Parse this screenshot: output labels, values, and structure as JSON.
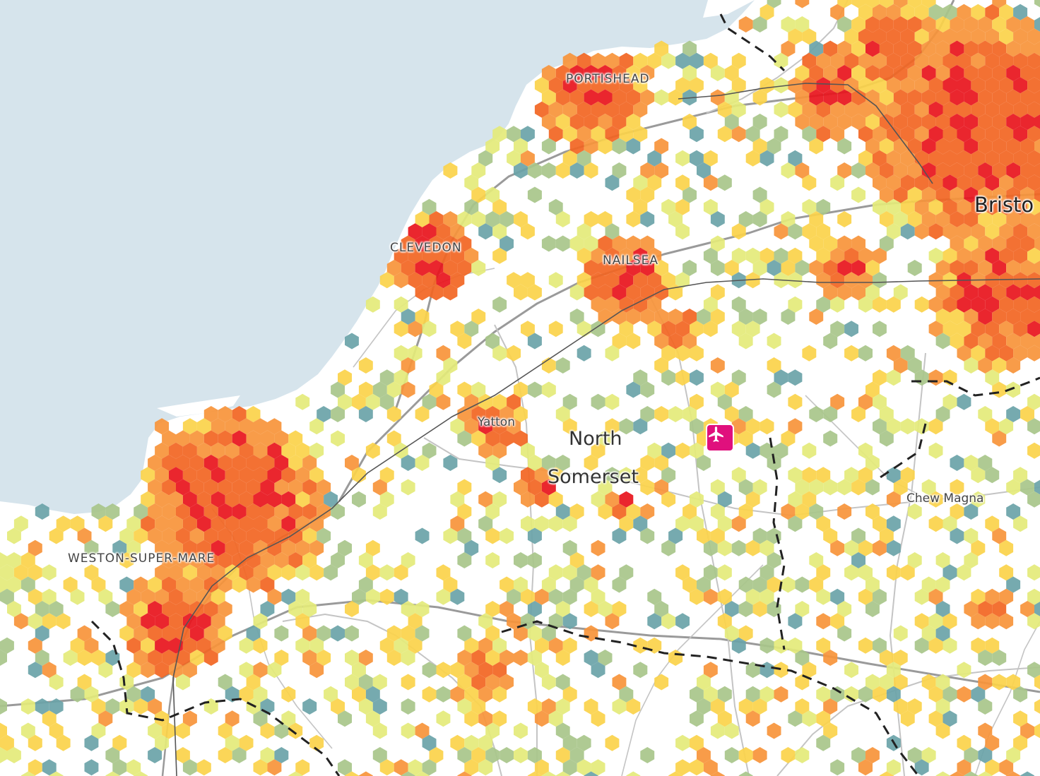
{
  "map": {
    "region": "North Somerset",
    "colors": {
      "sea": "#d6e4ec",
      "land": "#ffffff",
      "road_major": "#9a9a9a",
      "road_minor": "#c4c4c4",
      "railway": "#555555",
      "boundary": "#222222",
      "airport_marker": "#e0107d",
      "hex_scale": [
        "#e8141c",
        "#f26522",
        "#f7943a",
        "#fbd24a",
        "#e4ea7a",
        "#a8c68a",
        "#6aa3a8"
      ]
    },
    "labels": {
      "portishead": "PORTISHEAD",
      "clevedon": "CLEVEDON",
      "nailsea": "NAILSEA",
      "yatton": "Yatton",
      "district_line1": "North",
      "district_line2": "Somerset",
      "weston": "WESTON-SUPER-MARE",
      "chew_magna": "Chew Magna",
      "bristol": "Bristo"
    },
    "icons": {
      "airport": "airplane-icon"
    }
  }
}
